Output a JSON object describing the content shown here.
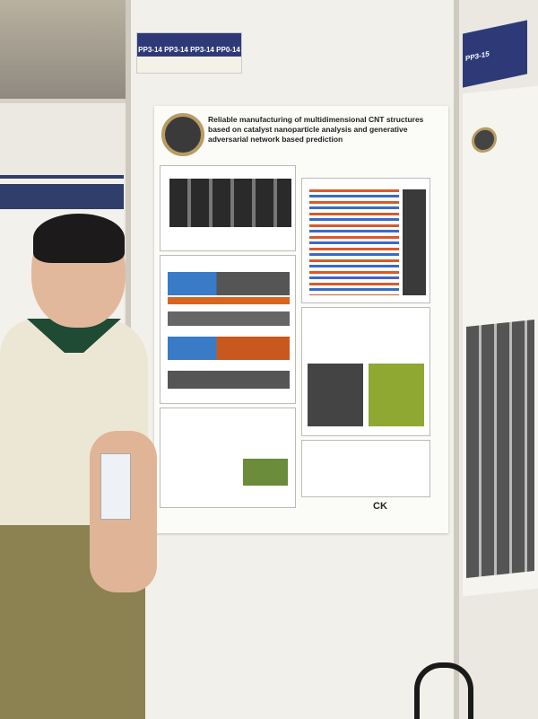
{
  "scene": "poster-session",
  "tags": {
    "main": [
      "PP3-14",
      "PP3-14",
      "PP3-14",
      "PP0-14"
    ],
    "right": [
      "PP3-15"
    ]
  },
  "poster": {
    "title": "Reliable manufacturing of multidimensional CNT structures based on catalyst nanoparticle analysis and generative adversarial network based prediction",
    "footer_logo": "CK"
  },
  "colors": {
    "tag": "#2e3a78",
    "shirt": "#ece7d5",
    "collar": "#1f4a34",
    "pants": "#8c8150"
  }
}
